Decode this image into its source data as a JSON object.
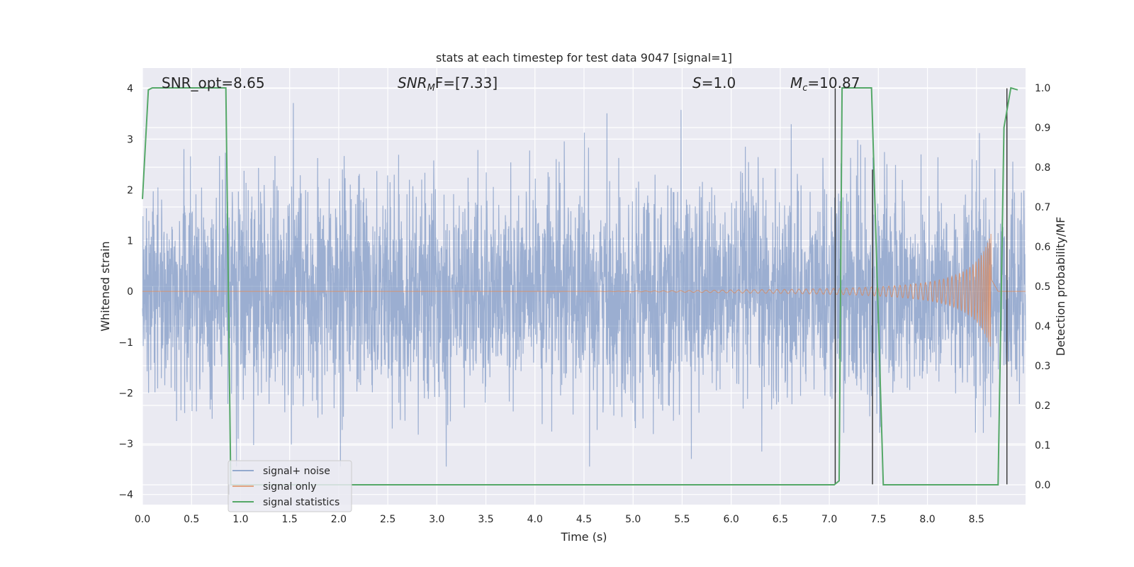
{
  "chart_data": {
    "type": "line",
    "title": "stats at each timestep for test data 9047 [signal=1]",
    "xlabel": "Time (s)",
    "ylabel_left": "Whitened strain",
    "ylabel_right": "Detection probability/MF",
    "xlim": [
      0.0,
      9.0
    ],
    "ylim_left": [
      -4.2,
      4.4
    ],
    "ylim_right": [
      -0.05,
      1.05
    ],
    "xticks": [
      "0.0",
      "0.5",
      "1.0",
      "1.5",
      "2.0",
      "2.5",
      "3.0",
      "3.5",
      "4.0",
      "4.5",
      "5.0",
      "5.5",
      "6.0",
      "6.5",
      "7.0",
      "7.5",
      "8.0",
      "8.5"
    ],
    "xtick_values": [
      0.0,
      0.5,
      1.0,
      1.5,
      2.0,
      2.5,
      3.0,
      3.5,
      4.0,
      4.5,
      5.0,
      5.5,
      6.0,
      6.5,
      7.0,
      7.5,
      8.0,
      8.5
    ],
    "yticks_left": [
      "4",
      "3",
      "2",
      "1",
      "0",
      "−1",
      "−2",
      "−3",
      "−4"
    ],
    "ytick_values_left": [
      4,
      3,
      2,
      1,
      0,
      -1,
      -2,
      -3,
      -4
    ],
    "yticks_right": [
      "1.0",
      "0.9",
      "0.8",
      "0.7",
      "0.6",
      "0.5",
      "0.4",
      "0.3",
      "0.2",
      "0.1",
      "0.0"
    ],
    "ytick_values_right": [
      1.0,
      0.9,
      0.8,
      0.7,
      0.6,
      0.5,
      0.4,
      0.3,
      0.2,
      0.1,
      0.0
    ],
    "grid": true,
    "legend_position": "bottom-left",
    "annotations": {
      "snr_opt": "SNR_opt=8.65",
      "snr_mf_main": "SNR",
      "snr_mf_sub": "M",
      "snr_mf_rest": "F=[7.33]",
      "s_main": "S",
      "s_rest": "=1.0",
      "mc_main": "M",
      "mc_sub": "c",
      "mc_rest": "=10.87"
    },
    "series": [
      {
        "name": "signal+ noise",
        "axis": "left",
        "color": "#4c72b0",
        "description": "whitened strain, roughly unit-variance noise spanning about -3.4 to 3.9"
      },
      {
        "name": "signal only",
        "axis": "left",
        "color": "#dd8452",
        "chirp": {
          "start_time": 4.5,
          "peak_time": 8.65,
          "peak_amplitude": 1.15,
          "end_time": 8.72
        }
      },
      {
        "name": "signal statistics",
        "axis": "right",
        "color": "#55a868",
        "x": [
          0.0,
          0.06,
          0.1,
          0.85,
          0.9,
          7.05,
          7.1,
          7.13,
          7.43,
          7.55,
          8.72,
          8.78,
          8.85,
          8.92
        ],
        "y": [
          0.72,
          0.995,
          1.0,
          1.0,
          0.0,
          0.0,
          0.01,
          1.0,
          1.0,
          0.0,
          0.0,
          0.9,
          1.0,
          0.995
        ]
      }
    ],
    "vertical_lines": {
      "color": "#333333",
      "x": [
        0.88,
        7.06,
        7.44,
        8.81
      ],
      "y_top": [
        -4.0,
        4.0,
        2.4,
        4.0
      ],
      "y_bottom": [
        -3.8,
        -3.8,
        -3.8,
        -3.8
      ]
    }
  }
}
